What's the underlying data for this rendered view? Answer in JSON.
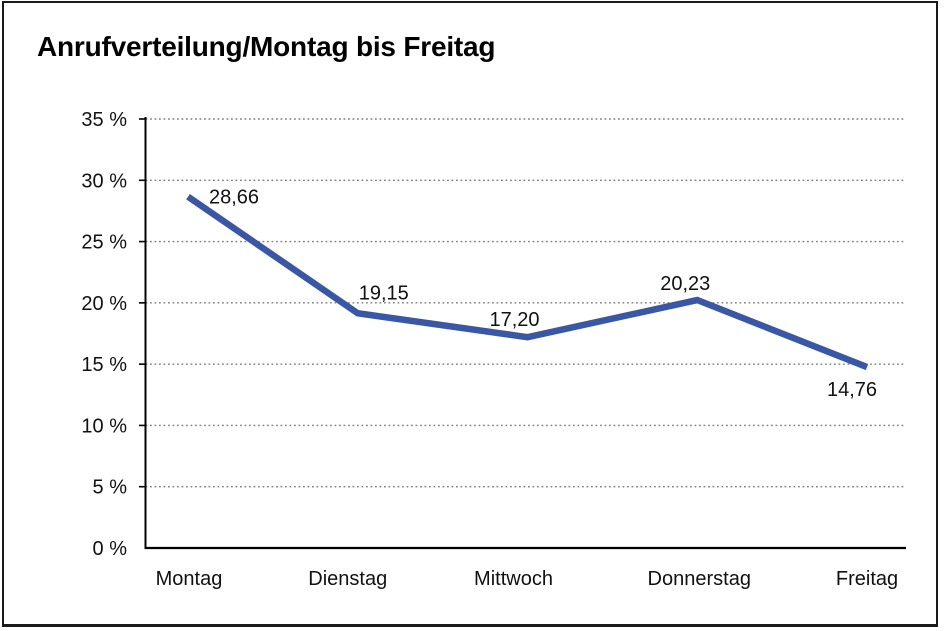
{
  "window": {
    "background_color": "#ffffff",
    "border_color": "#1a1a1a"
  },
  "chart_data": {
    "type": "line",
    "title": "Anrufverteilung/Montag bis Freitag",
    "categories": [
      "Montag",
      "Dienstag",
      "Mittwoch",
      "Donnerstag",
      "Freitag"
    ],
    "series": [
      {
        "name": "Anrufverteilung",
        "values": [
          28.66,
          19.15,
          17.2,
          20.23,
          14.76
        ],
        "value_labels": [
          "28,66",
          "19,15",
          "17,20",
          "20,23",
          "14,76"
        ]
      }
    ],
    "xlabel": "",
    "ylabel": "",
    "ylim": [
      0,
      35
    ],
    "y_tick_step": 5,
    "y_tick_labels": [
      "0 %",
      "5 %",
      "10 %",
      "15 %",
      "20 %",
      "25 %",
      "30 %",
      "35 %"
    ],
    "grid": "horizontal-dotted",
    "legend": "none",
    "line_color": "#3A57A6",
    "gridline_color": "#7f7f7f",
    "axis_color": "#000000",
    "text_color": "#111111"
  }
}
